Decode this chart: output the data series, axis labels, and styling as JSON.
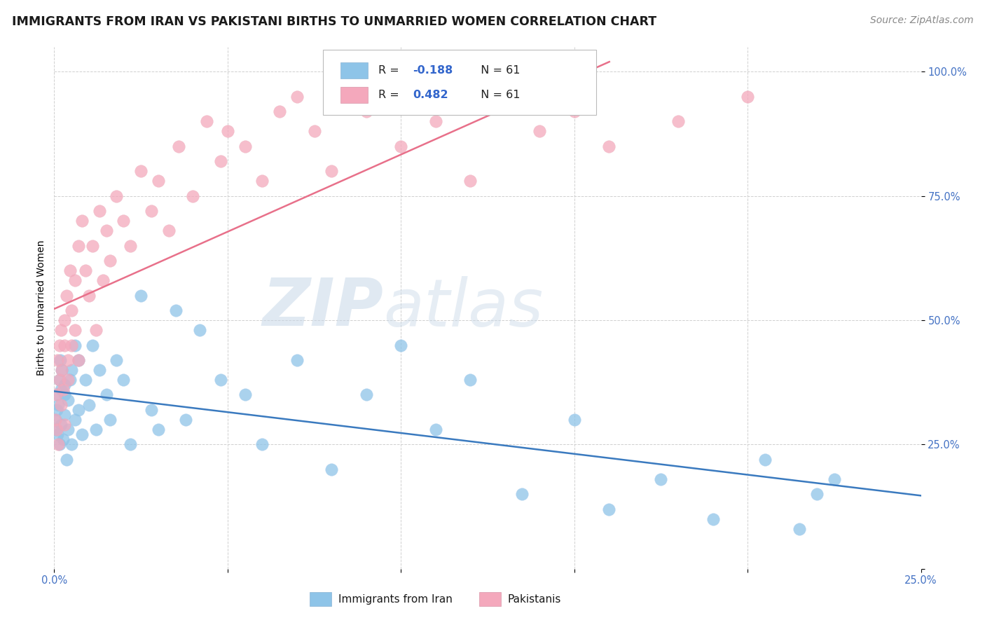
{
  "title": "IMMIGRANTS FROM IRAN VS PAKISTANI BIRTHS TO UNMARRIED WOMEN CORRELATION CHART",
  "source_text": "Source: ZipAtlas.com",
  "ylabel": "Births to Unmarried Women",
  "xlim": [
    0.0,
    0.25
  ],
  "ylim": [
    0.0,
    1.05
  ],
  "r_iran": -0.188,
  "r_pakistan": 0.482,
  "n": 61,
  "blue_color": "#8ec4e8",
  "pink_color": "#f4a8bc",
  "blue_line_color": "#3a7abf",
  "pink_line_color": "#e8708a",
  "watermark_zip": "ZIP",
  "watermark_atlas": "atlas",
  "title_fontsize": 12.5,
  "source_fontsize": 10,
  "axis_label_fontsize": 10,
  "tick_fontsize": 10.5,
  "background_color": "#ffffff",
  "grid_color": "#d0d0d0",
  "iran_x": [
    0.0003,
    0.0005,
    0.0008,
    0.001,
    0.001,
    0.0012,
    0.0015,
    0.0015,
    0.0018,
    0.002,
    0.002,
    0.0022,
    0.0025,
    0.003,
    0.003,
    0.003,
    0.0035,
    0.004,
    0.004,
    0.0045,
    0.005,
    0.005,
    0.006,
    0.006,
    0.007,
    0.007,
    0.008,
    0.009,
    0.01,
    0.011,
    0.012,
    0.013,
    0.015,
    0.016,
    0.018,
    0.02,
    0.022,
    0.025,
    0.028,
    0.03,
    0.035,
    0.038,
    0.042,
    0.048,
    0.055,
    0.06,
    0.07,
    0.08,
    0.09,
    0.1,
    0.11,
    0.12,
    0.135,
    0.15,
    0.16,
    0.175,
    0.19,
    0.205,
    0.215,
    0.22,
    0.225
  ],
  "iran_y": [
    0.3,
    0.28,
    0.32,
    0.35,
    0.27,
    0.33,
    0.38,
    0.25,
    0.42,
    0.29,
    0.36,
    0.4,
    0.26,
    0.35,
    0.31,
    0.37,
    0.22,
    0.34,
    0.28,
    0.38,
    0.4,
    0.25,
    0.45,
    0.3,
    0.32,
    0.42,
    0.27,
    0.38,
    0.33,
    0.45,
    0.28,
    0.4,
    0.35,
    0.3,
    0.42,
    0.38,
    0.25,
    0.55,
    0.32,
    0.28,
    0.52,
    0.3,
    0.48,
    0.38,
    0.35,
    0.25,
    0.42,
    0.2,
    0.35,
    0.45,
    0.28,
    0.38,
    0.15,
    0.3,
    0.12,
    0.18,
    0.1,
    0.22,
    0.08,
    0.15,
    0.18
  ],
  "pak_x": [
    0.0003,
    0.0005,
    0.0008,
    0.001,
    0.0012,
    0.0015,
    0.0015,
    0.002,
    0.002,
    0.0022,
    0.0025,
    0.003,
    0.003,
    0.003,
    0.0035,
    0.004,
    0.004,
    0.0045,
    0.005,
    0.005,
    0.006,
    0.006,
    0.007,
    0.007,
    0.008,
    0.009,
    0.01,
    0.011,
    0.012,
    0.013,
    0.014,
    0.015,
    0.016,
    0.018,
    0.02,
    0.022,
    0.025,
    0.028,
    0.03,
    0.033,
    0.036,
    0.04,
    0.044,
    0.048,
    0.05,
    0.055,
    0.06,
    0.065,
    0.07,
    0.075,
    0.08,
    0.09,
    0.1,
    0.11,
    0.12,
    0.13,
    0.14,
    0.15,
    0.16,
    0.18,
    0.2
  ],
  "pak_y": [
    0.3,
    0.35,
    0.28,
    0.42,
    0.25,
    0.38,
    0.45,
    0.33,
    0.48,
    0.4,
    0.36,
    0.5,
    0.29,
    0.45,
    0.55,
    0.42,
    0.38,
    0.6,
    0.45,
    0.52,
    0.58,
    0.48,
    0.65,
    0.42,
    0.7,
    0.6,
    0.55,
    0.65,
    0.48,
    0.72,
    0.58,
    0.68,
    0.62,
    0.75,
    0.7,
    0.65,
    0.8,
    0.72,
    0.78,
    0.68,
    0.85,
    0.75,
    0.9,
    0.82,
    0.88,
    0.85,
    0.78,
    0.92,
    0.95,
    0.88,
    0.8,
    0.92,
    0.85,
    0.9,
    0.78,
    0.95,
    0.88,
    0.92,
    0.85,
    0.9,
    0.95
  ]
}
